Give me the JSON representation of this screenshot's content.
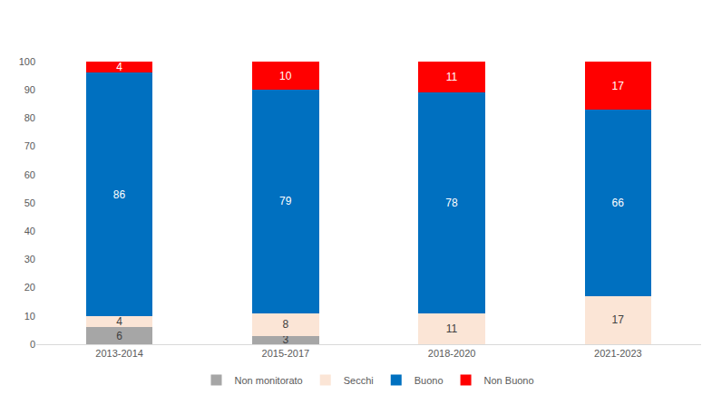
{
  "chart_data": {
    "type": "bar",
    "stacked": true,
    "categories": [
      "2013-2014",
      "2015-2017",
      "2018-2020",
      "2021-2023"
    ],
    "series": [
      {
        "name": "Non monitorato",
        "color": "#a6a6a6",
        "values": [
          6,
          3,
          null,
          null
        ]
      },
      {
        "name": "Secchi",
        "color": "#fbe5d6",
        "values": [
          4,
          8,
          11,
          17
        ]
      },
      {
        "name": "Buono",
        "color": "#0070c0",
        "values": [
          86,
          79,
          78,
          66
        ]
      },
      {
        "name": "Non Buono",
        "color": "#ff0000",
        "values": [
          4,
          10,
          11,
          17
        ]
      }
    ],
    "ylim": [
      0,
      100
    ],
    "yticks": [
      0,
      10,
      20,
      30,
      40,
      50,
      60,
      70,
      80,
      90,
      100
    ],
    "grid": false,
    "legend": "bottom",
    "data_labels": true
  }
}
